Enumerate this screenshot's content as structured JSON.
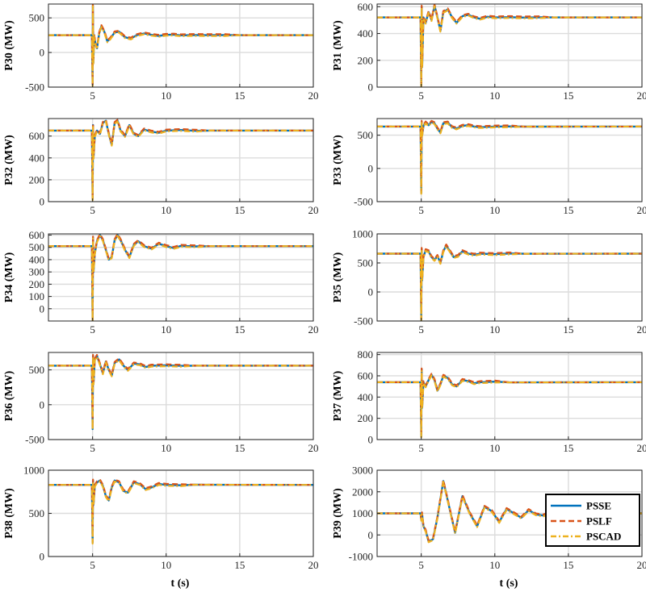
{
  "chart_data": [
    {
      "type": "line",
      "panel": "P30",
      "ylabel": "P30 (MW)",
      "xlim": [
        2,
        20
      ],
      "ylim": [
        -500,
        700
      ],
      "yticks": [
        -500,
        0,
        500
      ],
      "xticks": [
        5,
        10,
        15,
        20
      ],
      "grid": true,
      "base": 250,
      "x": [
        2,
        4.95,
        5.0,
        5.02,
        5.05,
        5.1,
        5.2,
        5.3,
        5.45,
        5.6,
        5.8,
        6.0,
        6.2,
        6.5,
        6.8,
        7.2,
        7.6,
        8.0,
        8.5,
        9.0,
        9.5,
        10.0,
        10.5,
        11.0,
        12.0,
        13.0,
        14.0,
        15.0,
        20
      ],
      "y": [
        250,
        250,
        -470,
        680,
        -150,
        250,
        120,
        60,
        280,
        380,
        300,
        160,
        200,
        290,
        300,
        220,
        200,
        250,
        275,
        255,
        240,
        255,
        258,
        248,
        252,
        250,
        251,
        250,
        250
      ]
    },
    {
      "type": "line",
      "panel": "P31",
      "ylabel": "P31 (MW)",
      "xlim": [
        2,
        20
      ],
      "ylim": [
        0,
        620
      ],
      "yticks": [
        0,
        200,
        400,
        600
      ],
      "xticks": [
        5,
        10,
        15,
        20
      ],
      "grid": true,
      "base": 520,
      "x": [
        2,
        4.95,
        5.0,
        5.03,
        5.06,
        5.15,
        5.3,
        5.5,
        5.7,
        5.9,
        6.1,
        6.3,
        6.5,
        6.8,
        7.1,
        7.4,
        7.8,
        8.2,
        8.6,
        9.0,
        9.5,
        10.0,
        11.0,
        12.0,
        13.0,
        14.0,
        20
      ],
      "y": [
        520,
        520,
        10,
        600,
        150,
        520,
        480,
        560,
        500,
        610,
        520,
        420,
        560,
        580,
        520,
        480,
        530,
        540,
        520,
        510,
        525,
        520,
        522,
        519,
        521,
        520,
        520
      ]
    },
    {
      "type": "line",
      "panel": "P32",
      "ylabel": "P32 (MW)",
      "xlim": [
        2,
        20
      ],
      "ylim": [
        0,
        760
      ],
      "yticks": [
        0,
        200,
        400,
        600
      ],
      "xticks": [
        5,
        10,
        15,
        20
      ],
      "grid": true,
      "base": 650,
      "x": [
        2,
        4.95,
        5.0,
        5.03,
        5.06,
        5.15,
        5.3,
        5.5,
        5.7,
        5.9,
        6.1,
        6.3,
        6.5,
        6.7,
        6.9,
        7.2,
        7.5,
        7.8,
        8.1,
        8.5,
        9.0,
        9.5,
        10.0,
        11.0,
        12.0,
        13.0,
        20
      ],
      "y": [
        650,
        650,
        20,
        700,
        400,
        600,
        650,
        620,
        720,
        740,
        620,
        520,
        720,
        740,
        650,
        600,
        700,
        620,
        600,
        660,
        640,
        630,
        650,
        655,
        648,
        650,
        650
      ]
    },
    {
      "type": "line",
      "panel": "P33",
      "ylabel": "P33 (MW)",
      "xlim": [
        2,
        20
      ],
      "ylim": [
        -500,
        750
      ],
      "yticks": [
        -500,
        0,
        500
      ],
      "xticks": [
        5,
        10,
        15,
        20
      ],
      "grid": true,
      "base": 630,
      "x": [
        2,
        4.95,
        5.0,
        5.03,
        5.06,
        5.15,
        5.3,
        5.5,
        5.7,
        5.9,
        6.1,
        6.3,
        6.5,
        6.8,
        7.1,
        7.4,
        7.8,
        8.2,
        8.6,
        9.0,
        10.0,
        11.0,
        12.0,
        20
      ],
      "y": [
        630,
        630,
        -370,
        700,
        500,
        640,
        690,
        650,
        700,
        680,
        600,
        540,
        680,
        690,
        620,
        600,
        640,
        650,
        630,
        620,
        630,
        632,
        629,
        630
      ]
    },
    {
      "type": "line",
      "panel": "P34",
      "ylabel": "P34 (MW)",
      "xlim": [
        2,
        20
      ],
      "ylim": [
        -100,
        610
      ],
      "yticks": [
        0,
        100,
        200,
        300,
        400,
        500,
        600
      ],
      "xticks": [
        5,
        10,
        15,
        20
      ],
      "grid": true,
      "base": 510,
      "x": [
        2,
        4.95,
        5.0,
        5.03,
        5.06,
        5.15,
        5.3,
        5.5,
        5.7,
        5.9,
        6.1,
        6.3,
        6.5,
        6.7,
        6.9,
        7.2,
        7.5,
        7.8,
        8.1,
        8.5,
        9.0,
        9.5,
        10.0,
        10.5,
        11.0,
        12.0,
        13.0,
        20
      ],
      "y": [
        510,
        510,
        -100,
        580,
        300,
        450,
        550,
        600,
        560,
        480,
        400,
        420,
        560,
        600,
        560,
        480,
        420,
        520,
        550,
        510,
        490,
        530,
        510,
        495,
        512,
        508,
        510,
        510
      ]
    },
    {
      "type": "line",
      "panel": "P35",
      "ylabel": "P35 (MW)",
      "xlim": [
        2,
        20
      ],
      "ylim": [
        -500,
        1000
      ],
      "yticks": [
        -500,
        0,
        500,
        1000
      ],
      "xticks": [
        5,
        10,
        15,
        20
      ],
      "grid": true,
      "base": 660,
      "x": [
        2,
        4.95,
        5.0,
        5.03,
        5.06,
        5.15,
        5.3,
        5.5,
        5.7,
        5.9,
        6.1,
        6.3,
        6.5,
        6.7,
        6.9,
        7.2,
        7.5,
        7.8,
        8.2,
        8.6,
        9.0,
        10.0,
        11.0,
        12.0,
        20
      ],
      "y": [
        660,
        660,
        -480,
        740,
        200,
        600,
        720,
        700,
        600,
        550,
        620,
        500,
        700,
        800,
        720,
        600,
        620,
        700,
        660,
        640,
        660,
        650,
        662,
        658,
        660
      ]
    },
    {
      "type": "line",
      "panel": "P36",
      "ylabel": "P36 (MW)",
      "xlim": [
        2,
        20
      ],
      "ylim": [
        -500,
        750
      ],
      "yticks": [
        -500,
        0,
        500
      ],
      "xticks": [
        5,
        10,
        15,
        20
      ],
      "grid": true,
      "base": 560,
      "x": [
        2,
        4.95,
        5.0,
        5.03,
        5.06,
        5.15,
        5.3,
        5.5,
        5.7,
        5.9,
        6.1,
        6.3,
        6.5,
        6.8,
        7.1,
        7.4,
        7.8,
        8.2,
        8.6,
        9.0,
        10.0,
        11.0,
        12.0,
        20
      ],
      "y": [
        560,
        560,
        -350,
        700,
        300,
        650,
        700,
        580,
        450,
        620,
        500,
        420,
        600,
        650,
        560,
        500,
        590,
        580,
        540,
        560,
        565,
        558,
        560,
        560
      ]
    },
    {
      "type": "line",
      "panel": "P37",
      "ylabel": "P37 (MW)",
      "xlim": [
        2,
        20
      ],
      "ylim": [
        0,
        820
      ],
      "yticks": [
        0,
        200,
        400,
        600,
        800
      ],
      "xticks": [
        5,
        10,
        15,
        20
      ],
      "grid": true,
      "base": 540,
      "x": [
        2,
        4.95,
        5.0,
        5.03,
        5.06,
        5.15,
        5.3,
        5.5,
        5.7,
        5.9,
        6.1,
        6.3,
        6.5,
        6.8,
        7.1,
        7.4,
        7.8,
        8.2,
        8.6,
        9.0,
        10.0,
        11.0,
        20
      ],
      "y": [
        540,
        540,
        30,
        660,
        300,
        540,
        500,
        560,
        610,
        560,
        460,
        520,
        600,
        580,
        520,
        500,
        560,
        550,
        530,
        540,
        545,
        538,
        540
      ]
    },
    {
      "type": "line",
      "panel": "P38",
      "ylabel": "P38 (MW)",
      "xlim": [
        2,
        20
      ],
      "ylim": [
        0,
        1000
      ],
      "yticks": [
        0,
        500,
        1000
      ],
      "xticks": [
        5,
        10,
        15,
        20
      ],
      "grid": true,
      "base": 830,
      "x": [
        2,
        4.95,
        5.0,
        5.03,
        5.06,
        5.15,
        5.3,
        5.5,
        5.7,
        5.9,
        6.1,
        6.3,
        6.5,
        6.8,
        7.1,
        7.4,
        7.8,
        8.2,
        8.6,
        9.0,
        9.5,
        10.0,
        11.0,
        12.0,
        20
      ],
      "y": [
        830,
        830,
        160,
        880,
        600,
        820,
        860,
        880,
        820,
        700,
        650,
        800,
        880,
        860,
        760,
        740,
        860,
        840,
        780,
        800,
        840,
        830,
        825,
        832,
        830
      ]
    },
    {
      "type": "line",
      "panel": "P39",
      "ylabel": "P39 (MW)",
      "xlim": [
        2,
        20
      ],
      "ylim": [
        -1000,
        3000
      ],
      "yticks": [
        -1000,
        0,
        1000,
        2000,
        3000
      ],
      "xticks": [
        5,
        10,
        15,
        20
      ],
      "grid": true,
      "base": 1000,
      "x": [
        2,
        4.95,
        5.0,
        5.05,
        5.15,
        5.3,
        5.5,
        5.8,
        6.1,
        6.5,
        6.9,
        7.3,
        7.8,
        8.3,
        8.8,
        9.3,
        9.8,
        10.3,
        10.8,
        11.3,
        11.8,
        12.3,
        12.8,
        13.3,
        14.0,
        14.5,
        15.0,
        16.0,
        17.0,
        20
      ],
      "y": [
        1000,
        1000,
        700,
        1000,
        400,
        200,
        -300,
        -200,
        800,
        2500,
        1300,
        100,
        1800,
        1000,
        400,
        1300,
        1100,
        600,
        1200,
        1000,
        800,
        1150,
        950,
        900,
        1080,
        980,
        1020,
        1000,
        1000,
        1000
      ]
    }
  ],
  "xlabel": "t (s)",
  "legend": {
    "position": "lower-right of P39",
    "items": [
      {
        "name": "PSSE",
        "color": "#0072BD",
        "style": "solid"
      },
      {
        "name": "PSLF",
        "color": "#D95319",
        "style": "dashed"
      },
      {
        "name": "PSCAD",
        "color": "#EDB120",
        "style": "dash-dot"
      }
    ]
  }
}
